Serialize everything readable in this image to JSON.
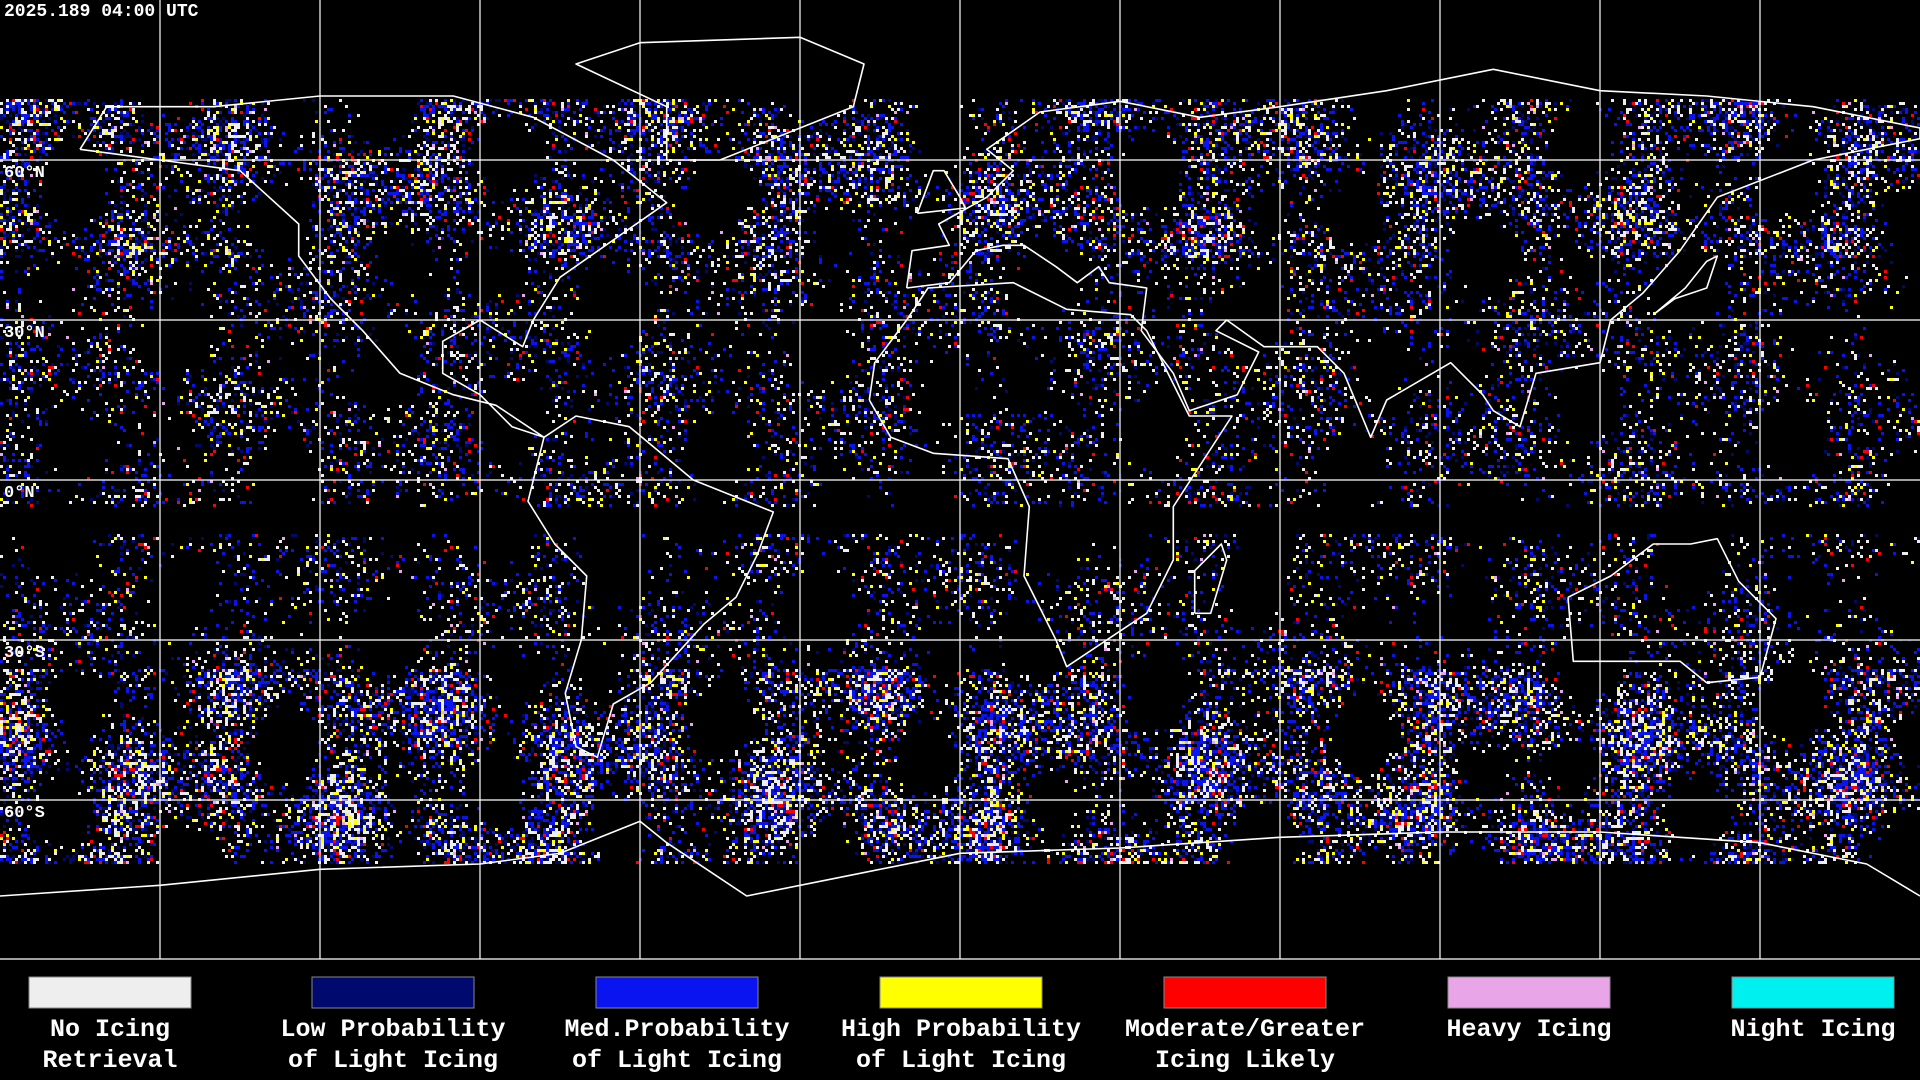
{
  "header": {
    "timestamp": "2025.189 04:00 UTC"
  },
  "map": {
    "lat_labels": [
      "60°N",
      "30°N",
      "0°N",
      "30°S",
      "60°S"
    ]
  },
  "legend": [
    {
      "label": [
        "No Icing",
        "Retrieval"
      ],
      "color": "#eeeeee"
    },
    {
      "label": [
        "Low Probability",
        "of Light Icing"
      ],
      "color": "#000a6e"
    },
    {
      "label": [
        "Med.Probability",
        "of Light Icing"
      ],
      "color": "#0a14f0"
    },
    {
      "label": [
        "High Probability",
        "of Light Icing"
      ],
      "color": "#ffff00"
    },
    {
      "label": [
        "Moderate/Greater",
        "Icing Likely"
      ],
      "color": "#ff0000"
    },
    {
      "label": [
        "Heavy Icing",
        ""
      ],
      "color": "#e8a6e8"
    },
    {
      "label": [
        "Night Icing",
        ""
      ],
      "color": "#00f0f0"
    }
  ]
}
